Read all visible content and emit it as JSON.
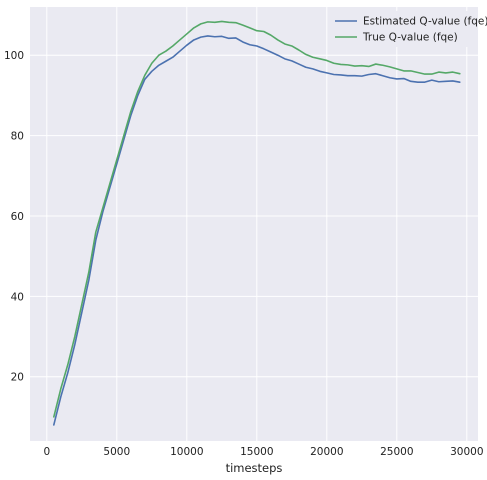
{
  "chart_data": {
    "type": "line",
    "title": "",
    "xlabel": "timesteps",
    "ylabel": "",
    "xlim": [
      -1200,
      30800
    ],
    "ylim": [
      4,
      112
    ],
    "xticks": [
      0,
      5000,
      10000,
      15000,
      20000,
      25000,
      30000
    ],
    "yticks": [
      20,
      40,
      60,
      80,
      100
    ],
    "grid": true,
    "legend_position": "top-right",
    "series": [
      {
        "name": "Estimated Q-value (fqe)",
        "color": "#4c72b0",
        "x": [
          500,
          1000,
          1500,
          2000,
          2500,
          3000,
          3500,
          4000,
          4500,
          5000,
          5500,
          6000,
          6500,
          7000,
          7500,
          8000,
          8500,
          9000,
          9500,
          10000,
          10500,
          11000,
          11500,
          12000,
          12500,
          13000,
          13500,
          14000,
          14500,
          15000,
          15500,
          16000,
          16500,
          17000,
          17500,
          18000,
          18500,
          19000,
          19500,
          20000,
          20500,
          21000,
          21500,
          22000,
          22500,
          23000,
          23500,
          24000,
          24500,
          25000,
          25500,
          26000,
          26500,
          27000,
          27500,
          28000,
          28500,
          29000,
          29500
        ],
        "y": [
          8,
          15,
          21,
          28,
          36,
          44,
          54,
          61,
          67,
          73,
          79,
          85,
          90,
          94,
          96,
          97.5,
          98.5,
          99.5,
          101,
          102.5,
          103.8,
          104.5,
          104.8,
          104.6,
          104.7,
          104.2,
          104.3,
          103.3,
          102.6,
          102.3,
          101.6,
          100.8,
          100,
          99.1,
          98.6,
          97.8,
          97,
          96.6,
          96,
          95.6,
          95.2,
          95.1,
          94.9,
          94.9,
          94.8,
          95.2,
          95.4,
          94.9,
          94.4,
          94.1,
          94.2,
          93.5,
          93.3,
          93.3,
          93.8,
          93.4,
          93.5,
          93.6,
          93.3
        ]
      },
      {
        "name": "True Q-value (fqe)",
        "color": "#55a868",
        "x": [
          500,
          1000,
          1500,
          2000,
          2500,
          3000,
          3500,
          4000,
          4500,
          5000,
          5500,
          6000,
          6500,
          7000,
          7500,
          8000,
          8500,
          9000,
          9500,
          10000,
          10500,
          11000,
          11500,
          12000,
          12500,
          13000,
          13500,
          14000,
          14500,
          15000,
          15500,
          16000,
          16500,
          17000,
          17500,
          18000,
          18500,
          19000,
          19500,
          20000,
          20500,
          21000,
          21500,
          22000,
          22500,
          23000,
          23500,
          24000,
          24500,
          25000,
          25500,
          26000,
          26500,
          27000,
          27500,
          28000,
          28500,
          29000,
          29500
        ],
        "y": [
          10,
          17,
          23,
          30,
          38,
          46,
          56,
          62,
          68,
          74,
          80,
          86,
          91,
          95,
          98,
          100,
          101,
          102.3,
          103.8,
          105.3,
          106.8,
          107.8,
          108.3,
          108.2,
          108.4,
          108.2,
          108.1,
          107.5,
          106.8,
          106.1,
          105.9,
          105,
          103.8,
          102.8,
          102.3,
          101.3,
          100.2,
          99.5,
          99.1,
          98.7,
          98,
          97.7,
          97.6,
          97.3,
          97.4,
          97.2,
          97.8,
          97.5,
          97.1,
          96.6,
          96.1,
          96.1,
          95.7,
          95.3,
          95.3,
          95.8,
          95.6,
          95.8,
          95.4
        ]
      }
    ]
  }
}
